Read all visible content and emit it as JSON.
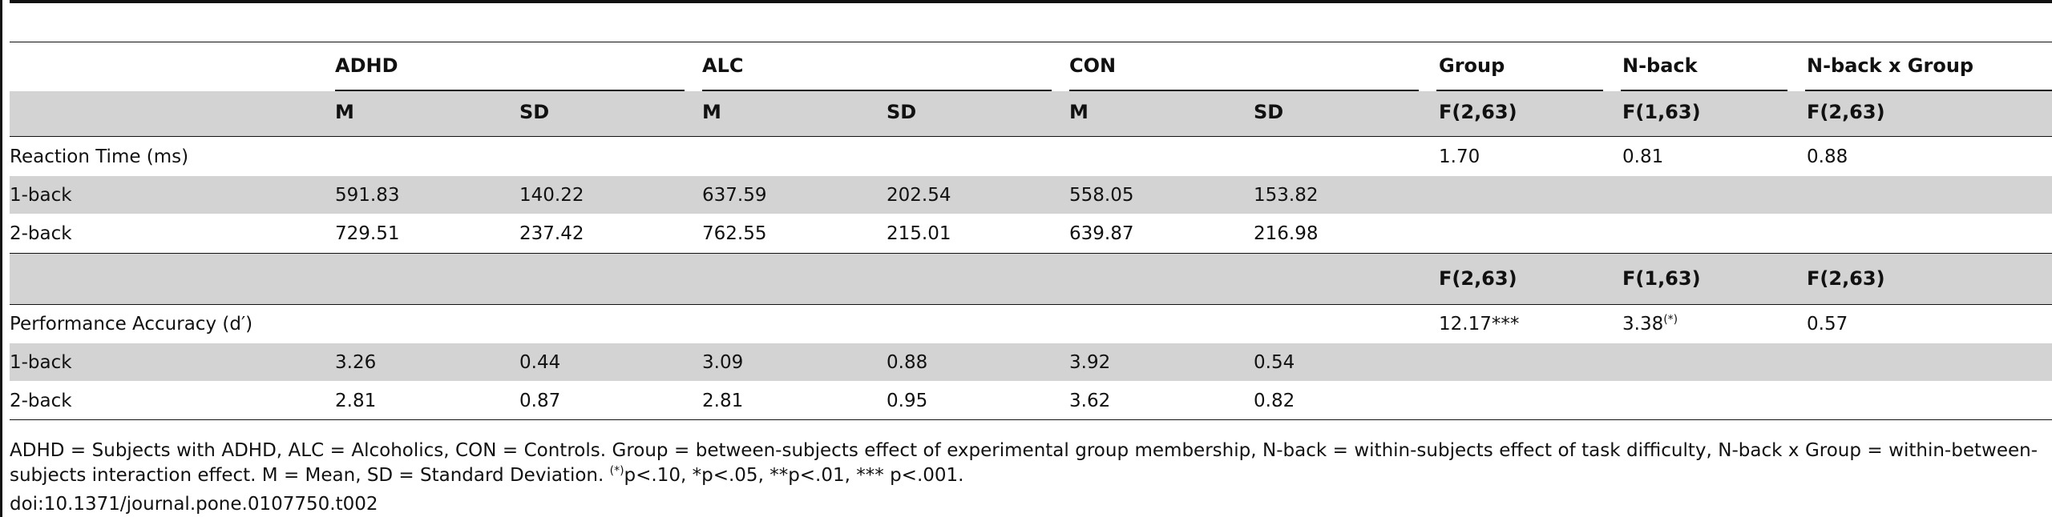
{
  "groups": {
    "adhd": "ADHD",
    "alc": "ALC",
    "con": "CON",
    "group": "Group",
    "nback": "N-back",
    "interaction": "N-back x Group"
  },
  "subheaders": {
    "m": "M",
    "sd": "SD",
    "f_group": "F(2,63)",
    "f_nback": "F(1,63)",
    "f_interaction": "F(2,63)"
  },
  "reaction_time": {
    "label": "Reaction Time (ms)",
    "f_group": "1.70",
    "f_nback": "0.81",
    "f_interaction": "0.88",
    "rows": [
      {
        "label": "1-back",
        "adhd_m": "591.83",
        "adhd_sd": "140.22",
        "alc_m": "637.59",
        "alc_sd": "202.54",
        "con_m": "558.05",
        "con_sd": "153.82"
      },
      {
        "label": "2-back",
        "adhd_m": "729.51",
        "adhd_sd": "237.42",
        "alc_m": "762.55",
        "alc_sd": "215.01",
        "con_m": "639.87",
        "con_sd": "216.98"
      }
    ]
  },
  "mid_header": {
    "f_group": "F(2,63)",
    "f_nback": "F(1,63)",
    "f_interaction": "F(2,63)"
  },
  "accuracy": {
    "label": "Performance Accuracy (d′)",
    "f_group": "12.17***",
    "f_nback": "3.38",
    "f_nback_sup": "(*)",
    "f_interaction": "0.57",
    "rows": [
      {
        "label": "1-back",
        "adhd_m": "3.26",
        "adhd_sd": "0.44",
        "alc_m": "3.09",
        "alc_sd": "0.88",
        "con_m": "3.92",
        "con_sd": "0.54"
      },
      {
        "label": "2-back",
        "adhd_m": "2.81",
        "adhd_sd": "0.87",
        "alc_m": "2.81",
        "alc_sd": "0.95",
        "con_m": "3.62",
        "con_sd": "0.82"
      }
    ]
  },
  "footnote": {
    "line1": "ADHD = Subjects with ADHD, ALC = Alcoholics, CON = Controls. Group = between-subjects effect of experimental group membership, N-back = within-subjects effect of task difficulty, N-back x Group = within-between-subjects interaction effect. M = Mean, SD = Standard Deviation.",
    "sig_sup": "(*)",
    "sig_text": "p<.10, *p<.05, **p<.01, *** p<.001."
  },
  "doi": "doi:10.1371/journal.pone.0107750.t002"
}
